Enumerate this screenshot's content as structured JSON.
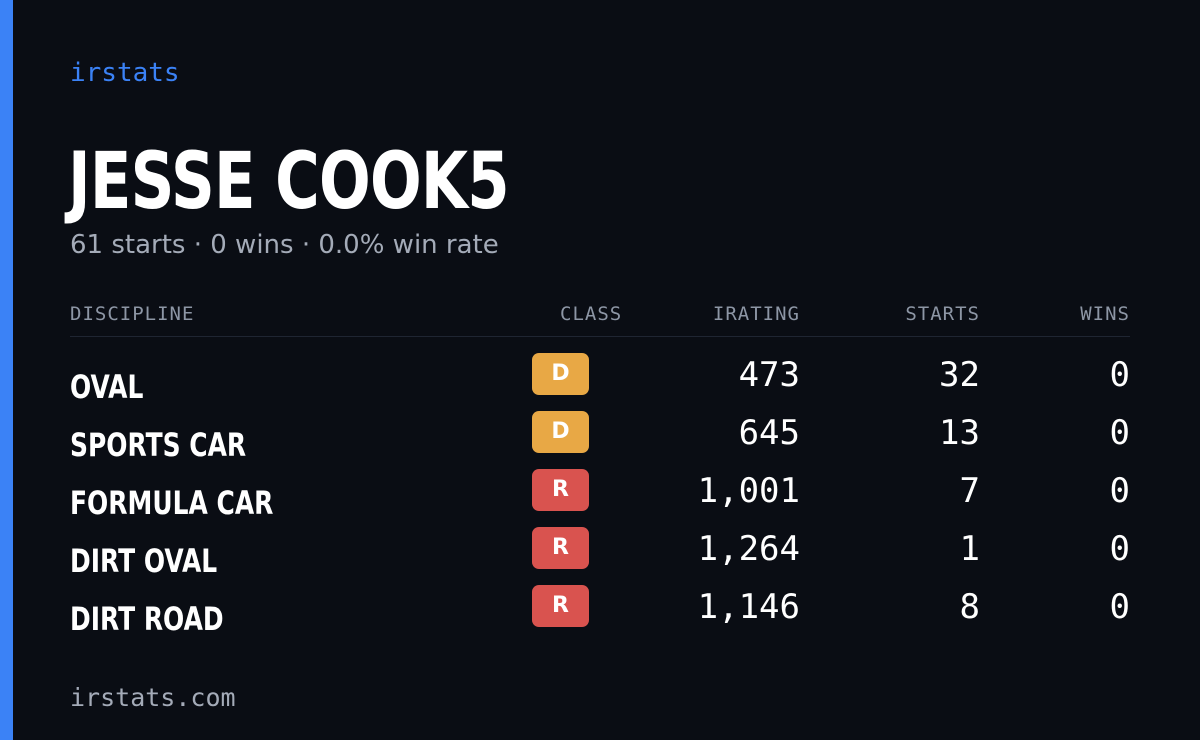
{
  "brand": "irstats",
  "player": {
    "name": "JESSE COOK5",
    "summary": "61 starts · 0 wins · 0.0% win rate"
  },
  "table": {
    "headers": {
      "discipline": "DISCIPLINE",
      "class": "CLASS",
      "irating": "IRATING",
      "starts": "STARTS",
      "wins": "WINS"
    },
    "rows": [
      {
        "discipline": "OVAL",
        "class": "D",
        "class_color": "#e8a845",
        "irating": "473",
        "starts": "32",
        "wins": "0"
      },
      {
        "discipline": "SPORTS CAR",
        "class": "D",
        "class_color": "#e8a845",
        "irating": "645",
        "starts": "13",
        "wins": "0"
      },
      {
        "discipline": "FORMULA CAR",
        "class": "R",
        "class_color": "#d9534f",
        "irating": "1,001",
        "starts": "7",
        "wins": "0"
      },
      {
        "discipline": "DIRT OVAL",
        "class": "R",
        "class_color": "#d9534f",
        "irating": "1,264",
        "starts": "1",
        "wins": "0"
      },
      {
        "discipline": "DIRT ROAD",
        "class": "R",
        "class_color": "#d9534f",
        "irating": "1,146",
        "starts": "8",
        "wins": "0"
      }
    ]
  },
  "footer": "irstats.com",
  "colors": {
    "background": "#0a0d14",
    "accent": "#3b82f6",
    "muted": "#a4abb8"
  }
}
